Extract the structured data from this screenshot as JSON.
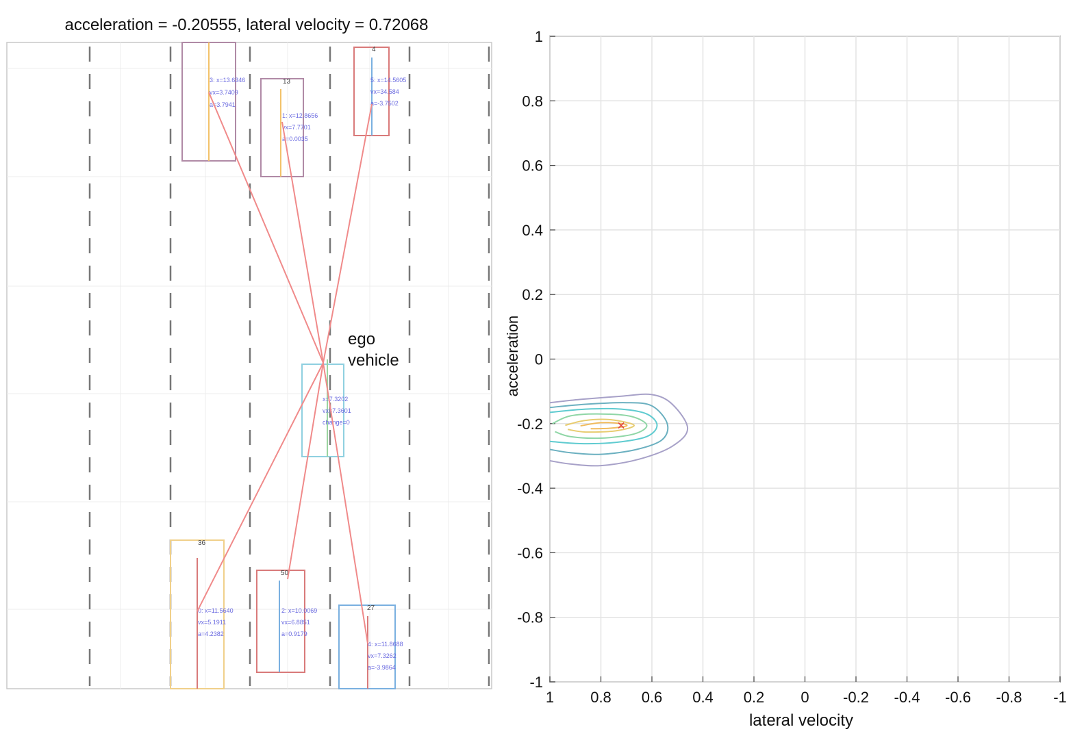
{
  "left_panel": {
    "title": "acceleration = -0.20555, lateral velocity = 0.72068",
    "ego_label_line1": "ego",
    "ego_label_line2": "vehicle",
    "vehicles": [
      {
        "id": "3",
        "info": [
          "3: x=13.6346",
          "vx=3.7409",
          "a=3.7941"
        ]
      },
      {
        "id": "13",
        "info": [
          "1: x=12.8656",
          "vx=7.7701",
          "a=0.0035"
        ]
      },
      {
        "id": "4",
        "info": [
          "5: x=14.5605",
          "vx=34.584",
          "a=-3.7502"
        ]
      },
      {
        "id": "ego",
        "info": [
          "x=7.3202",
          "vx=7.3601",
          "change=0"
        ]
      },
      {
        "id": "36",
        "info": [
          "0: x=11.5640",
          "vx=5.1911",
          "a=4.2382"
        ]
      },
      {
        "id": "50",
        "info": [
          "2: x=10.0069",
          "vx=6.8851",
          "a=0.9179"
        ]
      },
      {
        "id": "27",
        "info": [
          "4: x=11.8688",
          "vx=7.3262",
          "a=-3.9864"
        ]
      }
    ]
  },
  "chart_data": {
    "type": "contour",
    "title": "",
    "xlabel": "lateral velocity",
    "ylabel": "acceleration",
    "xlim": [
      1,
      -1
    ],
    "ylim": [
      -1,
      1
    ],
    "x_reversed": true,
    "grid": true,
    "xticks": [
      "1",
      "0.8",
      "0.6",
      "0.4",
      "0.2",
      "0",
      "-0.2",
      "-0.4",
      "-0.6",
      "-0.8",
      "-1"
    ],
    "xtick_values": [
      1,
      0.8,
      0.6,
      0.4,
      0.2,
      0,
      -0.2,
      -0.4,
      -0.6,
      -0.8,
      -1
    ],
    "yticks": [
      "1",
      "0.8",
      "0.6",
      "0.4",
      "0.2",
      "0",
      "-0.2",
      "-0.4",
      "-0.6",
      "-0.8",
      "-1"
    ],
    "ytick_values": [
      1,
      0.8,
      0.6,
      0.4,
      0.2,
      0,
      -0.2,
      -0.4,
      -0.6,
      -0.8,
      -1
    ],
    "peak": {
      "x": 0.72068,
      "y": -0.20555
    },
    "contours": [
      {
        "level": 1,
        "color": "#a7a1c8",
        "pts": [
          [
            1.0,
            -0.135
          ],
          [
            0.88,
            -0.125
          ],
          [
            0.72,
            -0.115
          ],
          [
            0.6,
            -0.11
          ],
          [
            0.52,
            -0.14
          ],
          [
            0.46,
            -0.215
          ],
          [
            0.52,
            -0.27
          ],
          [
            0.65,
            -0.31
          ],
          [
            0.8,
            -0.33
          ],
          [
            0.92,
            -0.325
          ],
          [
            1.0,
            -0.315
          ]
        ]
      },
      {
        "level": 2,
        "color": "#6bb0c0",
        "pts": [
          [
            1.0,
            -0.15
          ],
          [
            0.86,
            -0.14
          ],
          [
            0.7,
            -0.135
          ],
          [
            0.6,
            -0.145
          ],
          [
            0.54,
            -0.2
          ],
          [
            0.56,
            -0.25
          ],
          [
            0.66,
            -0.28
          ],
          [
            0.8,
            -0.295
          ],
          [
            0.92,
            -0.29
          ],
          [
            1.0,
            -0.28
          ]
        ]
      },
      {
        "level": 3,
        "color": "#5fcbd0",
        "pts": [
          [
            1.0,
            -0.165
          ],
          [
            0.86,
            -0.155
          ],
          [
            0.72,
            -0.155
          ],
          [
            0.62,
            -0.17
          ],
          [
            0.58,
            -0.205
          ],
          [
            0.62,
            -0.24
          ],
          [
            0.74,
            -0.258
          ],
          [
            0.88,
            -0.262
          ],
          [
            1.0,
            -0.255
          ]
        ]
      },
      {
        "level": 4,
        "color": "#8fd6a6",
        "pts": [
          [
            0.99,
            -0.2
          ],
          [
            0.92,
            -0.176
          ],
          [
            0.8,
            -0.17
          ],
          [
            0.68,
            -0.178
          ],
          [
            0.62,
            -0.205
          ],
          [
            0.67,
            -0.232
          ],
          [
            0.8,
            -0.245
          ],
          [
            0.92,
            -0.24
          ],
          [
            0.98,
            -0.225
          ]
        ]
      },
      {
        "level": 5,
        "color": "#e8cc70",
        "pts": [
          [
            0.94,
            -0.205
          ],
          [
            0.86,
            -0.19
          ],
          [
            0.76,
            -0.188
          ],
          [
            0.67,
            -0.205
          ],
          [
            0.74,
            -0.222
          ],
          [
            0.86,
            -0.226
          ],
          [
            0.93,
            -0.218
          ]
        ]
      },
      {
        "level": 6,
        "color": "#f1bb5c",
        "pts": [
          [
            0.88,
            -0.207
          ],
          [
            0.8,
            -0.197
          ],
          [
            0.72,
            -0.2
          ],
          [
            0.7,
            -0.207
          ],
          [
            0.76,
            -0.214
          ],
          [
            0.84,
            -0.216
          ]
        ]
      }
    ]
  }
}
